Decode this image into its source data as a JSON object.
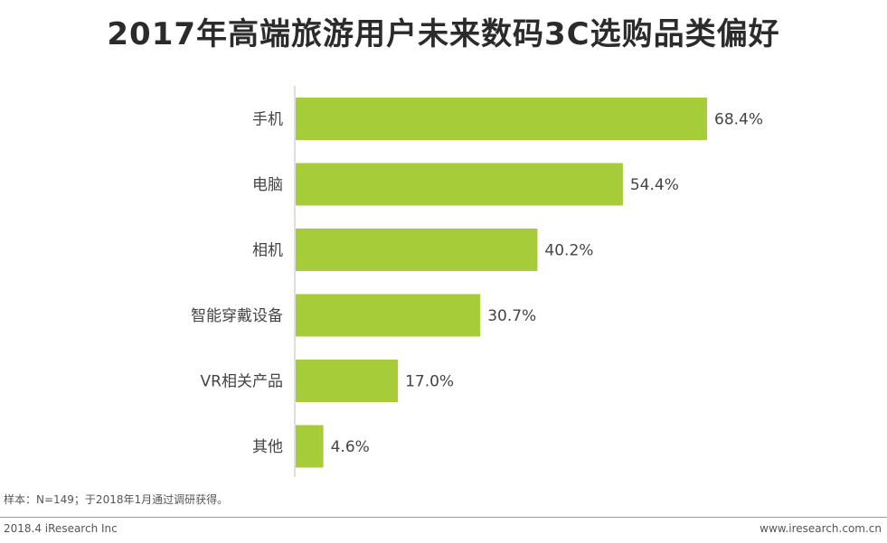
{
  "title": "2017年高端旅游用户未来数码3C选购品类偏好",
  "note": "样本：N=149；于2018年1月通过调研获得。",
  "footer": {
    "left": "2018.4 iResearch Inc",
    "right": "www.iresearch.com.cn"
  },
  "colors": {
    "bar": "#a6cc3a",
    "axis": "#bfbfbf"
  },
  "chart_data": {
    "type": "bar",
    "orientation": "horizontal",
    "title": "2017年高端旅游用户未来数码3C选购品类偏好",
    "categories": [
      "手机",
      "电脑",
      "相机",
      "智能穿戴设备",
      "VR相关产品",
      "其他"
    ],
    "values": [
      68.4,
      54.4,
      40.2,
      30.7,
      17.0,
      4.6
    ],
    "value_labels": [
      "68.4%",
      "54.4%",
      "40.2%",
      "30.7%",
      "17.0%",
      "4.6%"
    ],
    "unit": "%",
    "xlim": [
      0,
      68.4
    ],
    "grid": false,
    "legend": "none"
  }
}
